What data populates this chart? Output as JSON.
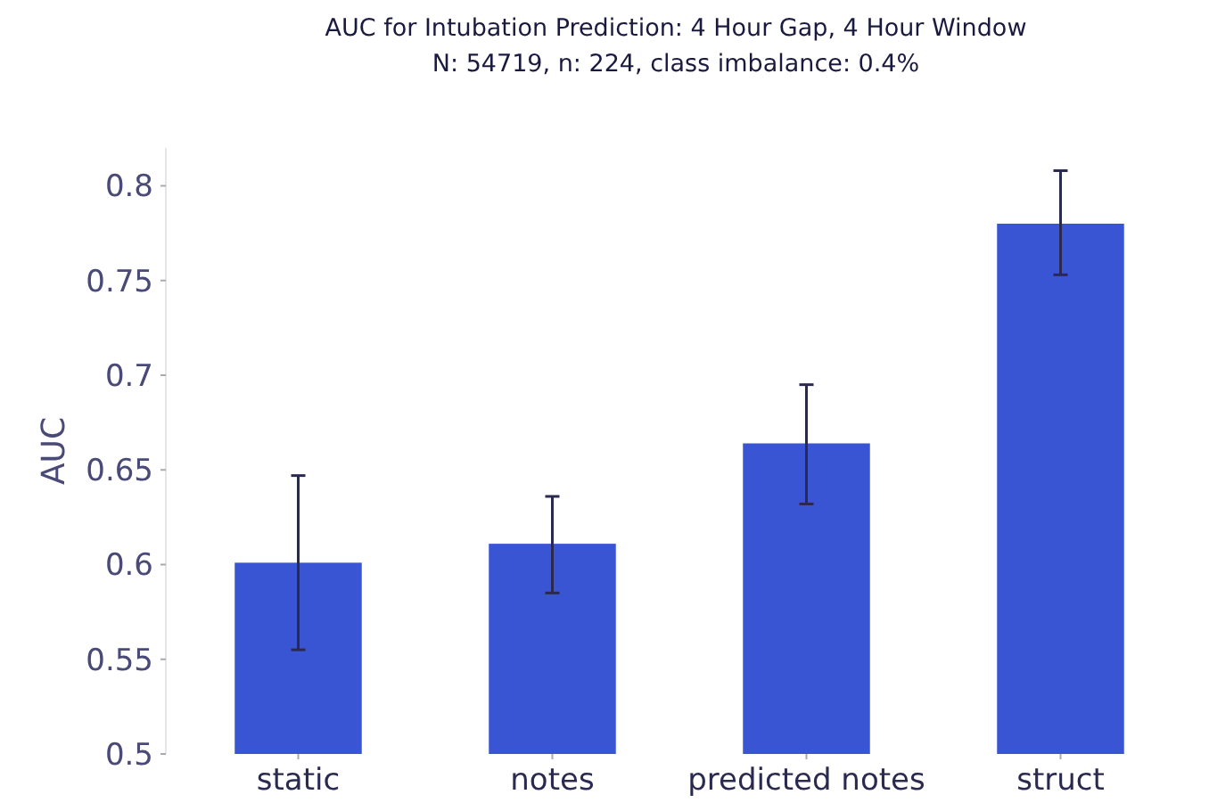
{
  "chart_data": {
    "type": "bar",
    "title": "AUC for Intubation Prediction: 4 Hour Gap, 4 Hour Window",
    "subtitle": "N: 54719, n: 224, class imbalance: 0.4%",
    "ylabel": "AUC",
    "categories": [
      "static",
      "notes",
      "predicted notes",
      "struct"
    ],
    "values": [
      0.601,
      0.611,
      0.664,
      0.78
    ],
    "errors": [
      [
        0.555,
        0.647
      ],
      [
        0.585,
        0.636
      ],
      [
        0.632,
        0.695
      ],
      [
        0.753,
        0.808
      ]
    ],
    "color": "#3a55d4",
    "ylim": [
      0.5,
      0.82
    ],
    "yticks": [
      0.5,
      0.55,
      0.6,
      0.65,
      0.7,
      0.75,
      0.8
    ],
    "grid": false
  }
}
